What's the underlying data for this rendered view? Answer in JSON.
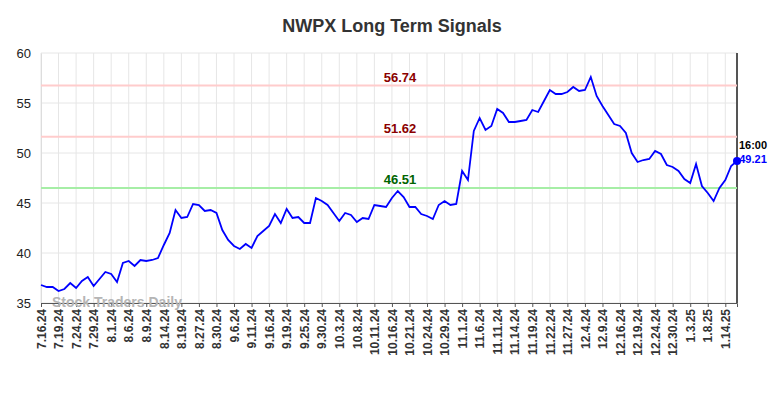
{
  "chart_data": {
    "type": "line",
    "title": "NWPX Long Term Signals",
    "watermark": "Stock Traders Daily",
    "categories": [
      "7.16.24",
      null,
      null,
      "7.19.24",
      null,
      null,
      "7.24.24",
      null,
      null,
      "7.29.24",
      null,
      null,
      "8.1.24",
      null,
      null,
      "8.6.24",
      null,
      null,
      "8.9.24",
      null,
      null,
      "8.14.24",
      null,
      null,
      "8.19.24",
      null,
      null,
      "8.27.24",
      null,
      null,
      "8.30.24",
      null,
      null,
      "9.6.24",
      null,
      null,
      "9.11.24",
      null,
      null,
      "9.16.24",
      null,
      null,
      "9.19.24",
      null,
      null,
      "9.25.24",
      null,
      null,
      "9.30.24",
      null,
      null,
      "10.3.24",
      null,
      null,
      "10.8.24",
      null,
      null,
      "10.11.24",
      null,
      null,
      "10.16.24",
      null,
      null,
      "10.21.24",
      null,
      null,
      "10.24.24",
      null,
      null,
      "10.29.24",
      null,
      null,
      "11.1.24",
      null,
      null,
      "11.6.24",
      null,
      null,
      "11.11.24",
      null,
      null,
      "11.14.24",
      null,
      null,
      "11.19.24",
      null,
      null,
      "11.22.24",
      null,
      null,
      "11.27.24",
      null,
      null,
      "12.4.24",
      null,
      null,
      "12.9.24",
      null,
      null,
      "12.16.24",
      null,
      null,
      "12.19.24",
      null,
      null,
      "12.24.24",
      null,
      null,
      "12.30.24",
      null,
      null,
      "1.3.25",
      null,
      null,
      "1.8.25",
      null,
      null,
      "1.14.25",
      null,
      null
    ],
    "values": [
      36.8,
      36.6,
      36.6,
      36.2,
      36.4,
      37.0,
      36.5,
      37.2,
      37.6,
      36.7,
      37.4,
      38.1,
      37.9,
      37.1,
      39.0,
      39.2,
      38.7,
      39.3,
      39.2,
      39.3,
      39.5,
      40.8,
      42.0,
      44.3,
      43.5,
      43.6,
      44.9,
      44.8,
      44.2,
      44.3,
      44.0,
      42.3,
      41.3,
      40.7,
      40.4,
      40.9,
      40.5,
      41.7,
      42.2,
      42.7,
      43.9,
      43.0,
      44.4,
      43.5,
      43.6,
      43.0,
      43.0,
      45.5,
      45.2,
      44.8,
      44.0,
      43.2,
      44.0,
      43.8,
      43.1,
      43.5,
      43.4,
      44.8,
      44.7,
      44.6,
      45.5,
      46.2,
      45.6,
      44.6,
      44.6,
      43.9,
      43.7,
      43.4,
      44.8,
      45.2,
      44.8,
      44.9,
      48.2,
      47.3,
      52.2,
      53.5,
      52.3,
      52.7,
      54.4,
      54.0,
      53.1,
      53.1,
      53.2,
      53.3,
      54.3,
      54.1,
      55.2,
      56.3,
      55.9,
      55.9,
      56.1,
      56.6,
      56.2,
      56.3,
      57.6,
      55.7,
      54.7,
      53.8,
      52.9,
      52.7,
      52.0,
      50.0,
      49.1,
      49.3,
      49.4,
      50.2,
      49.9,
      48.8,
      48.6,
      48.2,
      47.4,
      47.0,
      48.9,
      46.7,
      46.0,
      45.2,
      46.5,
      47.3,
      48.7,
      49.21
    ],
    "color": "#0000ff",
    "ylim": [
      35,
      60
    ],
    "yticks": [
      35,
      40,
      45,
      50,
      55,
      60
    ],
    "grid": true,
    "reference_lines": [
      {
        "value": 56.74,
        "color": "#ffcccc",
        "label_color": "#8b0000"
      },
      {
        "value": 51.62,
        "color": "#ffcccc",
        "label_color": "#8b0000"
      },
      {
        "value": 46.51,
        "color": "#a6eea6",
        "label_color": "#006400"
      }
    ],
    "end_label": {
      "time": "16:00",
      "value": 49.21
    }
  }
}
